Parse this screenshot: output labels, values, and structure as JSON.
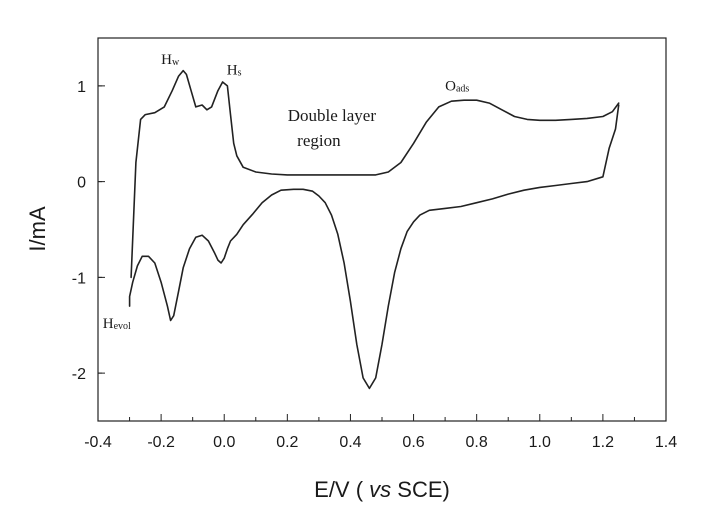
{
  "chart_data": {
    "type": "line",
    "title": "",
    "xlabel_pre": "E/V ( ",
    "xlabel_italic": "vs",
    "xlabel_post": " SCE)",
    "ylabel": "I/mA",
    "xlim": [
      -0.4,
      1.4
    ],
    "ylim": [
      -2.5,
      1.5
    ],
    "xticks": [
      -0.4,
      -0.2,
      0.0,
      0.2,
      0.4,
      0.6,
      0.8,
      1.0,
      1.2,
      1.4
    ],
    "xtick_labels": [
      "-0.4",
      "-0.2",
      "0.0",
      "0.2",
      "0.4",
      "0.6",
      "0.8",
      "1.0",
      "1.2",
      "1.4"
    ],
    "yticks": [
      -2,
      -1,
      0,
      1
    ],
    "ytick_labels": [
      "-2",
      "-1",
      "0",
      "1"
    ],
    "grid": false,
    "line_color": "#222222",
    "series": [
      {
        "x": [
          -0.295,
          -0.28,
          -0.265,
          -0.25,
          -0.22,
          -0.19,
          -0.165,
          -0.145,
          -0.13,
          -0.12,
          -0.105,
          -0.09,
          -0.07,
          -0.055,
          -0.04,
          -0.02,
          -0.005,
          0.01,
          0.02,
          0.03,
          0.04,
          0.06,
          0.1,
          0.15,
          0.2,
          0.3,
          0.4,
          0.48,
          0.52,
          0.56,
          0.6,
          0.64,
          0.68,
          0.72,
          0.76,
          0.8,
          0.84,
          0.88,
          0.92,
          0.96,
          1.0,
          1.05,
          1.1,
          1.15,
          1.2,
          1.23,
          1.25
        ],
        "y": [
          -1.0,
          0.2,
          0.65,
          0.7,
          0.72,
          0.78,
          0.95,
          1.1,
          1.16,
          1.12,
          0.95,
          0.78,
          0.8,
          0.75,
          0.78,
          0.95,
          1.04,
          1.0,
          0.7,
          0.4,
          0.27,
          0.15,
          0.1,
          0.08,
          0.07,
          0.07,
          0.07,
          0.07,
          0.1,
          0.2,
          0.4,
          0.62,
          0.78,
          0.84,
          0.85,
          0.85,
          0.82,
          0.75,
          0.68,
          0.65,
          0.64,
          0.64,
          0.65,
          0.66,
          0.68,
          0.73,
          0.82
        ]
      },
      {
        "x": [
          1.25,
          1.24,
          1.22,
          1.2,
          1.15,
          1.1,
          1.05,
          1.0,
          0.95,
          0.9,
          0.85,
          0.8,
          0.75,
          0.7,
          0.65,
          0.62,
          0.6,
          0.58,
          0.56,
          0.54,
          0.52,
          0.5,
          0.48,
          0.46,
          0.44,
          0.42,
          0.4,
          0.38,
          0.36,
          0.34,
          0.32,
          0.3,
          0.28,
          0.25,
          0.22,
          0.18,
          0.15,
          0.12,
          0.09,
          0.06,
          0.04,
          0.02,
          0.01,
          0.0,
          -0.01,
          -0.02,
          -0.03,
          -0.05,
          -0.07,
          -0.09,
          -0.11,
          -0.13,
          -0.145,
          -0.16,
          -0.17,
          -0.18,
          -0.2,
          -0.22,
          -0.24,
          -0.26,
          -0.275,
          -0.29,
          -0.3,
          -0.3
        ],
        "y": [
          0.8,
          0.55,
          0.35,
          0.05,
          0.0,
          -0.02,
          -0.04,
          -0.06,
          -0.09,
          -0.13,
          -0.18,
          -0.22,
          -0.26,
          -0.28,
          -0.3,
          -0.35,
          -0.42,
          -0.52,
          -0.7,
          -0.95,
          -1.3,
          -1.7,
          -2.05,
          -2.16,
          -2.05,
          -1.7,
          -1.25,
          -0.85,
          -0.55,
          -0.35,
          -0.22,
          -0.15,
          -0.1,
          -0.08,
          -0.08,
          -0.09,
          -0.14,
          -0.22,
          -0.34,
          -0.45,
          -0.55,
          -0.62,
          -0.7,
          -0.8,
          -0.85,
          -0.82,
          -0.75,
          -0.62,
          -0.56,
          -0.58,
          -0.7,
          -0.9,
          -1.15,
          -1.4,
          -1.45,
          -1.3,
          -1.05,
          -0.85,
          -0.78,
          -0.78,
          -0.88,
          -1.05,
          -1.2,
          -1.3
        ]
      }
    ],
    "annotations": [
      {
        "main": "H",
        "sub": "w",
        "x": -0.2,
        "y": 1.23
      },
      {
        "main": "H",
        "sub": "s",
        "x": 0.008,
        "y": 1.12
      },
      {
        "main": "O",
        "sub": "ads",
        "x": 0.7,
        "y": 0.95
      },
      {
        "main": "H",
        "sub": "evol",
        "x": -0.385,
        "y": -1.53
      }
    ],
    "region_label": [
      "Double layer",
      "region"
    ],
    "region_label_pos": {
      "x": 0.3,
      "y": 0.55
    }
  }
}
